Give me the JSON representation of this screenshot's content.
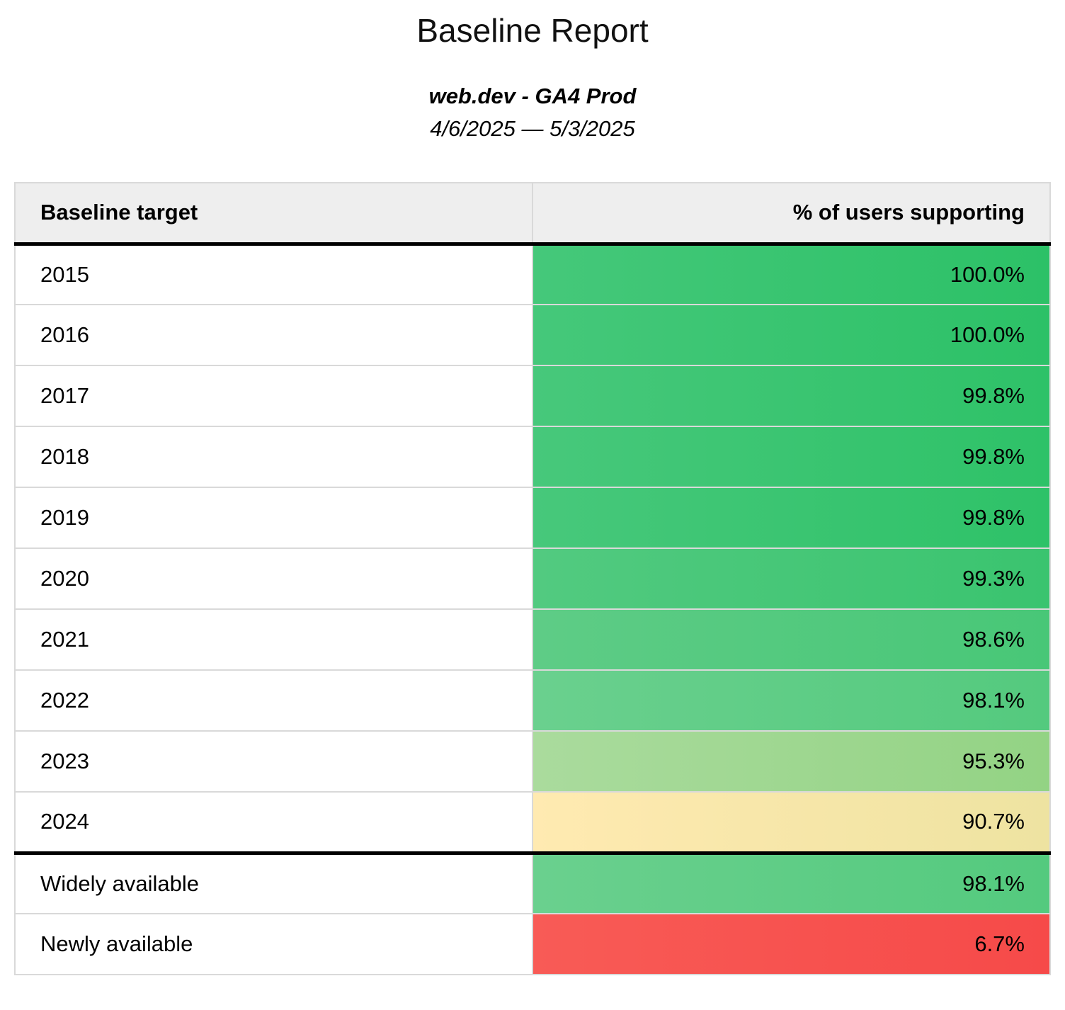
{
  "header": {
    "title": "Baseline Report",
    "subtitle": "web.dev - GA4 Prod",
    "date_range": "4/6/2025 — 5/3/2025"
  },
  "table": {
    "columns": [
      {
        "label": "Baseline target"
      },
      {
        "label": "% of users supporting"
      }
    ],
    "rows": [
      {
        "label": "2015",
        "value": "100.0%",
        "color_left": "#45c87a",
        "color_right": "#2cc167",
        "section_break": false
      },
      {
        "label": "2016",
        "value": "100.0%",
        "color_left": "#45c87a",
        "color_right": "#2cc167",
        "section_break": false
      },
      {
        "label": "2017",
        "value": "99.8%",
        "color_left": "#47c87b",
        "color_right": "#2ec268",
        "section_break": false
      },
      {
        "label": "2018",
        "value": "99.8%",
        "color_left": "#47c87b",
        "color_right": "#2ec268",
        "section_break": false
      },
      {
        "label": "2019",
        "value": "99.8%",
        "color_left": "#47c87b",
        "color_right": "#2ec268",
        "section_break": false
      },
      {
        "label": "2020",
        "value": "99.3%",
        "color_left": "#52ca80",
        "color_right": "#3ac46f",
        "section_break": false
      },
      {
        "label": "2021",
        "value": "98.6%",
        "color_left": "#5ecc86",
        "color_right": "#48c777",
        "section_break": false
      },
      {
        "label": "2022",
        "value": "98.1%",
        "color_left": "#6ad08e",
        "color_right": "#54ca7e",
        "section_break": false
      },
      {
        "label": "2023",
        "value": "95.3%",
        "color_left": "#aadb9d",
        "color_right": "#93d384",
        "section_break": false
      },
      {
        "label": "2024",
        "value": "90.7%",
        "color_left": "#ffeab1",
        "color_right": "#eee3a1",
        "section_break": false
      },
      {
        "label": "Widely available",
        "value": "98.1%",
        "color_left": "#6ad08e",
        "color_right": "#54ca7e",
        "section_break": true
      },
      {
        "label": "Newly available",
        "value": "6.7%",
        "color_left": "#f85b56",
        "color_right": "#f64a49",
        "section_break": false
      }
    ]
  },
  "colors": {
    "header_bg": "#eeeeee",
    "grid_border": "#d9d9d9",
    "section_border": "#000000",
    "text": "#000000"
  },
  "chart_data": {
    "type": "table",
    "title": "Baseline Report",
    "subtitle": "web.dev - GA4 Prod",
    "date_range": "4/6/2025 — 5/3/2025",
    "columns": [
      "Baseline target",
      "% of users supporting"
    ],
    "categories": [
      "2015",
      "2016",
      "2017",
      "2018",
      "2019",
      "2020",
      "2021",
      "2022",
      "2023",
      "2024",
      "Widely available",
      "Newly available"
    ],
    "values": [
      100.0,
      100.0,
      99.8,
      99.8,
      99.8,
      99.3,
      98.6,
      98.1,
      95.3,
      90.7,
      98.1,
      6.7
    ],
    "value_unit": "%",
    "legend_position": "none",
    "grid": true
  }
}
